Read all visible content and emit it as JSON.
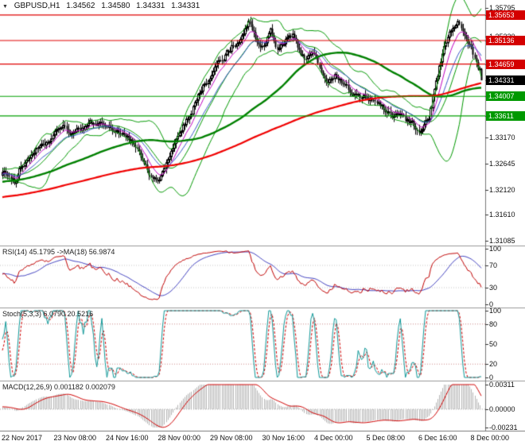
{
  "icons": {
    "chart_arrow": "▼"
  },
  "header": {
    "symbol": "GBPUSD,H1",
    "open": "1.34562",
    "high": "1.34580",
    "low": "1.34331",
    "close": "1.34331"
  },
  "chart_data": {
    "type": "candlestick",
    "symbol": "GBPUSD",
    "timeframe": "H1",
    "ohlc": {
      "open": 1.34562,
      "high": 1.3458,
      "low": 1.34331,
      "close": 1.34331
    },
    "bars": 285,
    "price_range": [
      1.31005,
      1.35956
    ],
    "price_ticks": [
      "1.35795",
      "1.35220",
      "1.33170",
      "1.32645",
      "1.32120",
      "1.31610",
      "1.31085"
    ],
    "level_tags": [
      {
        "price": 1.35653,
        "label": "1.35653",
        "color": "#d40000",
        "type": "resistance-1"
      },
      {
        "price": 1.35136,
        "label": "1.35136",
        "color": "#d40000",
        "type": "resistance-2"
      },
      {
        "price": 1.34659,
        "label": "1.34659",
        "color": "#d40000",
        "type": "resistance-3"
      },
      {
        "price": 1.34331,
        "label": "1.34331",
        "color": "#000000",
        "type": "current-price"
      },
      {
        "price": 1.34007,
        "label": "1.34007",
        "color": "#009900",
        "type": "support-1"
      },
      {
        "price": 1.33611,
        "label": "1.33611",
        "color": "#009900",
        "type": "support-2"
      }
    ],
    "x_labels": [
      "22 Nov 2017",
      "23 Nov 08:00",
      "24 Nov 16:00",
      "28 Nov 00:00",
      "29 Nov 08:00",
      "30 Nov 16:00",
      "4 Dec 00:00",
      "5 Dec 08:00",
      "6 Dec 16:00",
      "8 Dec 00:00"
    ],
    "close_keyframes": [
      [
        0.0,
        1.3252
      ],
      [
        0.012,
        1.3238
      ],
      [
        0.025,
        1.3228
      ],
      [
        0.04,
        1.3262
      ],
      [
        0.055,
        1.3275
      ],
      [
        0.07,
        1.3292
      ],
      [
        0.085,
        1.33
      ],
      [
        0.1,
        1.3312
      ],
      [
        0.115,
        1.333
      ],
      [
        0.13,
        1.3338
      ],
      [
        0.15,
        1.3322
      ],
      [
        0.17,
        1.3336
      ],
      [
        0.19,
        1.3348
      ],
      [
        0.21,
        1.334
      ],
      [
        0.23,
        1.3332
      ],
      [
        0.25,
        1.3328
      ],
      [
        0.27,
        1.3312
      ],
      [
        0.29,
        1.3275
      ],
      [
        0.31,
        1.3242
      ],
      [
        0.325,
        1.3222
      ],
      [
        0.34,
        1.3262
      ],
      [
        0.355,
        1.33
      ],
      [
        0.37,
        1.3332
      ],
      [
        0.385,
        1.3352
      ],
      [
        0.4,
        1.3385
      ],
      [
        0.42,
        1.3422
      ],
      [
        0.44,
        1.3455
      ],
      [
        0.46,
        1.3478
      ],
      [
        0.48,
        1.3502
      ],
      [
        0.5,
        1.3528
      ],
      [
        0.515,
        1.3552
      ],
      [
        0.53,
        1.3518
      ],
      [
        0.545,
        1.3495
      ],
      [
        0.56,
        1.3538
      ],
      [
        0.575,
        1.3495
      ],
      [
        0.59,
        1.3512
      ],
      [
        0.605,
        1.3525
      ],
      [
        0.62,
        1.3488
      ],
      [
        0.635,
        1.3478
      ],
      [
        0.65,
        1.3488
      ],
      [
        0.665,
        1.3452
      ],
      [
        0.68,
        1.3425
      ],
      [
        0.695,
        1.3442
      ],
      [
        0.71,
        1.3432
      ],
      [
        0.725,
        1.3412
      ],
      [
        0.74,
        1.3402
      ],
      [
        0.755,
        1.3398
      ],
      [
        0.77,
        1.3392
      ],
      [
        0.785,
        1.3382
      ],
      [
        0.8,
        1.3372
      ],
      [
        0.815,
        1.3358
      ],
      [
        0.83,
        1.3368
      ],
      [
        0.845,
        1.3352
      ],
      [
        0.86,
        1.3342
      ],
      [
        0.875,
        1.333
      ],
      [
        0.89,
        1.3352
      ],
      [
        0.905,
        1.3432
      ],
      [
        0.92,
        1.3492
      ],
      [
        0.935,
        1.3535
      ],
      [
        0.95,
        1.3555
      ],
      [
        0.962,
        1.354
      ],
      [
        0.975,
        1.3508
      ],
      [
        0.988,
        1.3472
      ],
      [
        1.0,
        1.34331
      ]
    ],
    "overlays": {
      "bollinger": {
        "period": 20,
        "deviation": 2
      },
      "ema_fast_period": 9,
      "ema_mid_period": 19,
      "sma_green_period": 80,
      "sma_red_period": 200
    },
    "rsi": {
      "label": "RSI(14) 45.1795  ->MA(18) 56.9874",
      "period": 14,
      "ma_period": 18,
      "current": 45.1795,
      "ma_current": 56.9874,
      "ticks": [
        "100",
        "70",
        "30",
        "0"
      ],
      "levels": [
        70,
        30
      ]
    },
    "stoch": {
      "label": "Stoch(5,3,3) 6.0790 20.5216",
      "k": 5,
      "d": 3,
      "slowing": 3,
      "current_k": 6.079,
      "current_d": 20.5216,
      "ticks": [
        "100",
        "80",
        "50",
        "20",
        "0"
      ],
      "levels": [
        80,
        20
      ]
    },
    "macd": {
      "label": "MACD(12,26,9) 0.001182 0.002079",
      "fast": 12,
      "slow": 26,
      "signal": 9,
      "current": 0.001182,
      "current_signal": 0.002079,
      "ticks": [
        "0.00311",
        "0.00000",
        "-0.00231"
      ],
      "range": [
        -0.00231,
        0.00311
      ]
    },
    "colors": {
      "background": "#ffffff",
      "candle_up": "#ffffff",
      "candle_down": "#000000",
      "candle_border": "#000000",
      "bollinger": "#009900",
      "ema_fast": "#c000c0",
      "ema_mid": "#3858c8",
      "sma_green": "#008000",
      "sma_red": "#f00000",
      "resistance_line": "#e00000",
      "support_line": "#00a000",
      "rsi_line": "#c00000",
      "rsi_ma": "#4040c0",
      "stoch_main": "#0f9898",
      "stoch_signal": "#d00000",
      "macd_hist": "#b4b4b4",
      "macd_signal": "#d00000",
      "level_dotted": "#c4c4c4",
      "stoch_dotted": "#cc8888",
      "separator": "#999999",
      "axis_border": "#787878"
    }
  }
}
